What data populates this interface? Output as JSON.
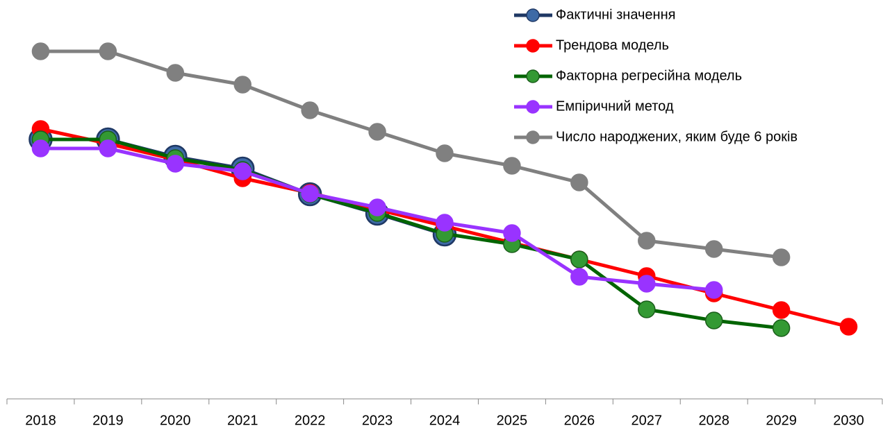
{
  "chart_data": {
    "type": "line",
    "categories": [
      "2018",
      "2019",
      "2020",
      "2021",
      "2022",
      "2023",
      "2024",
      "2025",
      "2026",
      "2027",
      "2028",
      "2029",
      "2030"
    ],
    "ylim": [
      0,
      111
    ],
    "legend": "top-right",
    "series": [
      {
        "name": "Фактичні значення",
        "color": "#1f3864",
        "marker_color": "#3d6aa6",
        "values": [
          74.8,
          74.8,
          69.8,
          66.4,
          59,
          53.4,
          47.4,
          null,
          null,
          null,
          null,
          null,
          null
        ]
      },
      {
        "name": "Трендова модель",
        "color": "#ff0000",
        "marker_color": "#ff0000",
        "values": [
          77.8,
          73.6,
          69,
          63.6,
          59.4,
          54.6,
          49.8,
          45,
          40.2,
          35.4,
          30.4,
          25.6,
          20.8
        ]
      },
      {
        "name": "Факторна регресійна модель",
        "color": "#006400",
        "marker_color": "#339933",
        "values": [
          74.8,
          74.8,
          69.4,
          66,
          59,
          53.6,
          47.6,
          44.6,
          40.2,
          25.8,
          22.6,
          20.4,
          null
        ]
      },
      {
        "name": "Емпіричний метод",
        "color": "#9933ff",
        "marker_color": "#9933ff",
        "values": [
          72.2,
          72.2,
          67.8,
          65.6,
          59.2,
          55.2,
          50.8,
          47.8,
          35.2,
          33.2,
          31.4,
          null,
          null
        ]
      },
      {
        "name": "Число народжених, яким буде 6 років",
        "color": "#808080",
        "marker_color": "#808080",
        "values": [
          100.2,
          100.2,
          94,
          90.6,
          83.2,
          77,
          70.8,
          67.2,
          62.4,
          45.6,
          43.2,
          40.8,
          null
        ]
      }
    ]
  }
}
